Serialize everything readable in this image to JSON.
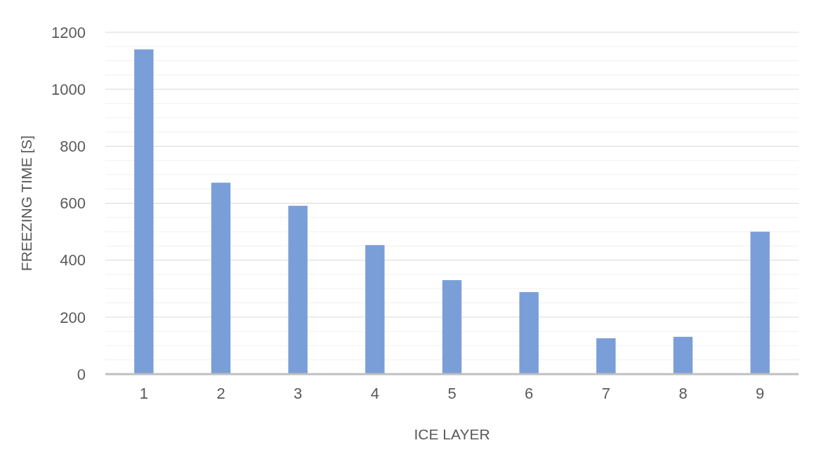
{
  "chart_data": {
    "type": "bar",
    "xlabel": "ICE LAYER",
    "ylabel": "FREEZING TIME [S]",
    "categories": [
      "1",
      "2",
      "3",
      "4",
      "5",
      "6",
      "7",
      "8",
      "9"
    ],
    "values": [
      1140,
      672,
      591,
      453,
      330,
      288,
      126,
      131,
      500
    ],
    "color": "#7a9fd8",
    "ylim": [
      0,
      1200
    ],
    "yticks": [
      0,
      {
        "value": 50,
        "label": null
      },
      {
        "value": 100,
        "label": null
      },
      {
        "value": 150,
        "label": null
      },
      200,
      {
        "value": 250,
        "label": null
      },
      {
        "value": 300,
        "label": null
      },
      {
        "value": 350,
        "label": null
      },
      400,
      {
        "value": 450,
        "label": null
      },
      {
        "value": 500,
        "label": null
      },
      {
        "value": 550,
        "label": null
      },
      600,
      {
        "value": 650,
        "label": null
      },
      {
        "value": 700,
        "label": null
      },
      {
        "value": 750,
        "label": null
      },
      800,
      {
        "value": 850,
        "label": null
      },
      {
        "value": 900,
        "label": null
      },
      {
        "value": 950,
        "label": null
      },
      1000,
      {
        "value": 1050,
        "label": null
      },
      {
        "value": 1100,
        "label": null
      },
      {
        "value": 1150,
        "label": null
      },
      1200
    ],
    "grid": "y"
  }
}
